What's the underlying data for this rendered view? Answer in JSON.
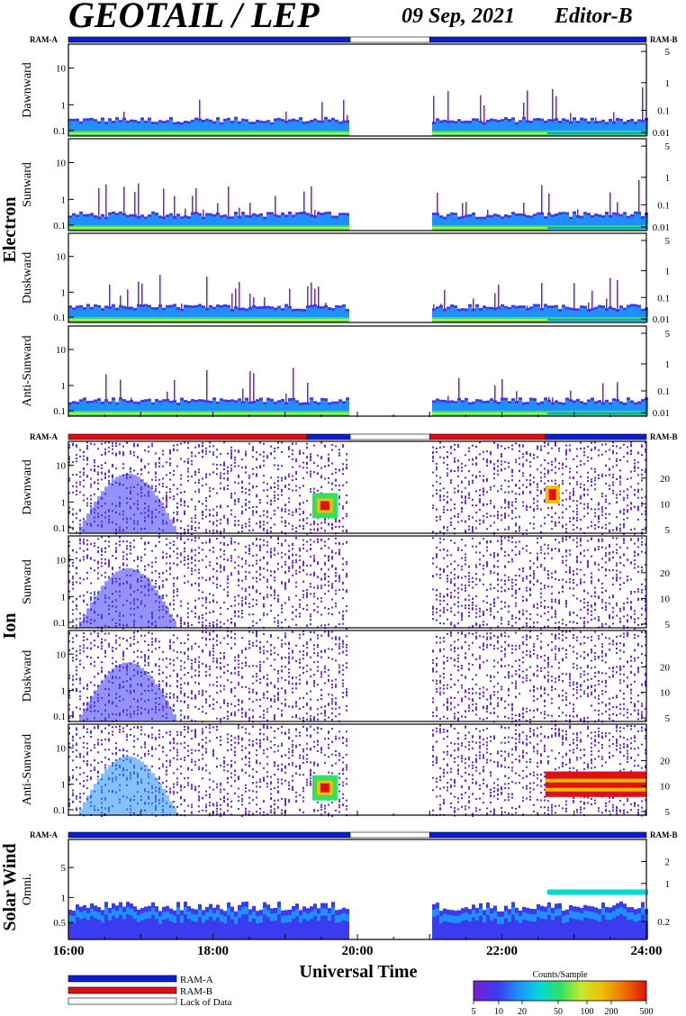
{
  "header": {
    "title": "GEOTAIL / LEP",
    "date": "09 Sep, 2021",
    "editor": "Editor-B"
  },
  "colors": {
    "ram_a": "#0a1ed2",
    "ram_b": "#e01010",
    "lack": "#ffffff",
    "colorscale": [
      "#7a1fd6",
      "#3b3bf0",
      "#1e90ff",
      "#00d8d8",
      "#30e060",
      "#c8e830",
      "#f0c000",
      "#f07000",
      "#e01010"
    ]
  },
  "legend": {
    "ram_a": "RAM-A",
    "ram_b": "RAM-B",
    "lack": "Lack of Data",
    "colorbar_title": "Counts/Sample",
    "colorbar_ticks": [
      "5",
      "10",
      "20",
      "50",
      "100",
      "200",
      "500"
    ]
  },
  "chart_data": {
    "type": "heatmap",
    "xlabel": "Universal Time",
    "x_range_hours": [
      16,
      24
    ],
    "x_ticks": [
      "16:00",
      "18:00",
      "20:00",
      "22:00",
      "24:00"
    ],
    "data_gap_hours": [
      19.9,
      21.0
    ],
    "groups": [
      {
        "name": "Electron",
        "ram_label_left": "RAM-A",
        "ram_label_right": "RAM-B",
        "ram_bar": [
          {
            "start": 16.0,
            "end": 19.9,
            "mode": "ram_a"
          },
          {
            "start": 19.9,
            "end": 21.0,
            "mode": "lack"
          },
          {
            "start": 21.0,
            "end": 24.0,
            "mode": "ram_a"
          }
        ],
        "panels": [
          {
            "label": "Dawnward",
            "left_ticks": [
              "10",
              "1",
              "0.1"
            ],
            "right_ticks": [
              "5",
              "1",
              "0.1",
              "0.01"
            ]
          },
          {
            "label": "Sunward",
            "left_ticks": [
              "10",
              "1",
              "0.1"
            ],
            "right_ticks": [
              "5",
              "1",
              "0.1",
              "0.01"
            ]
          },
          {
            "label": "Duskward",
            "left_ticks": [
              "10",
              "1",
              "0.1"
            ],
            "right_ticks": [
              "5",
              "1",
              "0.1",
              "0.01"
            ]
          },
          {
            "label": "Anti-Sunward",
            "left_ticks": [
              "10",
              "1",
              "0.1"
            ],
            "right_ticks": [
              "5",
              "1",
              "0.1",
              "0.01"
            ]
          }
        ]
      },
      {
        "name": "Ion",
        "ram_label_left": "RAM-A",
        "ram_label_right": "RAM-B",
        "ram_bar": [
          {
            "start": 16.0,
            "end": 19.3,
            "mode": "ram_b"
          },
          {
            "start": 19.3,
            "end": 19.9,
            "mode": "ram_a"
          },
          {
            "start": 19.9,
            "end": 21.0,
            "mode": "lack"
          },
          {
            "start": 21.0,
            "end": 22.6,
            "mode": "ram_b"
          },
          {
            "start": 22.6,
            "end": 24.0,
            "mode": "ram_a"
          }
        ],
        "panels": [
          {
            "label": "Dawnward",
            "left_ticks": [
              "10",
              "1",
              "0.1"
            ],
            "right_ticks": [
              "20",
              "10",
              "5"
            ]
          },
          {
            "label": "Sunward",
            "left_ticks": [
              "10",
              "1",
              "0.1"
            ],
            "right_ticks": [
              "20",
              "10",
              "5"
            ]
          },
          {
            "label": "Duskward",
            "left_ticks": [
              "10",
              "1",
              "0.1"
            ],
            "right_ticks": [
              "20",
              "10",
              "5"
            ]
          },
          {
            "label": "Anti-Sunward",
            "left_ticks": [
              "10",
              "1",
              "0.1"
            ],
            "right_ticks": [
              "20",
              "10",
              "5"
            ]
          }
        ]
      },
      {
        "name": "Solar Wind",
        "ram_label_left": "RAM-A",
        "ram_label_right": "RAM-B",
        "ram_bar": [
          {
            "start": 16.0,
            "end": 19.9,
            "mode": "ram_a"
          },
          {
            "start": 19.9,
            "end": 21.0,
            "mode": "lack"
          },
          {
            "start": 21.0,
            "end": 24.0,
            "mode": "ram_a"
          }
        ],
        "panels": [
          {
            "label": "Omni.",
            "left_ticks": [
              "5",
              "1",
              "0.5"
            ],
            "right_ticks": [
              "2",
              "1",
              "0.2"
            ]
          }
        ]
      }
    ]
  }
}
